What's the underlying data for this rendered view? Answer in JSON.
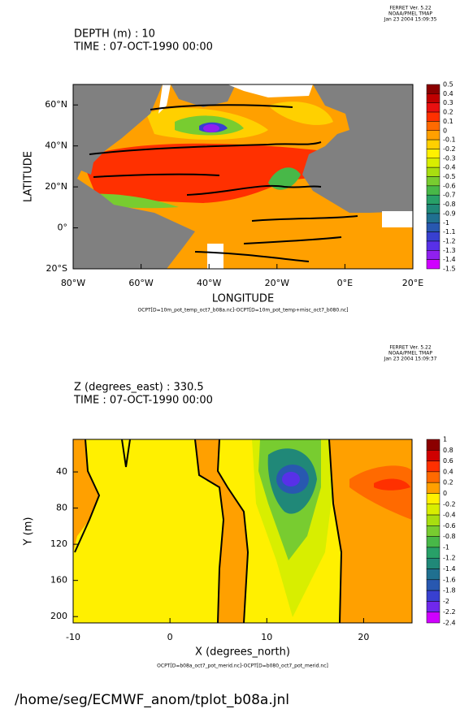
{
  "chart_data": [
    {
      "type": "contour",
      "stamp": [
        "FERRET Ver. 5.22",
        "NOAA/PMEL TMAP",
        "Jan 23 2004 15:09:35"
      ],
      "title_lines": [
        "DEPTH (m) : 10",
        "TIME : 07-OCT-1990 00:00"
      ],
      "xlabel": "LONGITUDE",
      "ylabel": "LATITUDE",
      "note": "OCPT[D=10m_pot_temp_oct7_b08a.nc]-OCPT[D=10m_pot_temp+misc_oct7_b080.nc]",
      "xlim": [
        -80,
        20
      ],
      "xticks": [
        {
          "value": -80,
          "label": "80°W"
        },
        {
          "value": -60,
          "label": "60°W"
        },
        {
          "value": -40,
          "label": "40°W"
        },
        {
          "value": -20,
          "label": "20°W"
        },
        {
          "value": 0,
          "label": "0°E"
        },
        {
          "value": 20,
          "label": "20°E"
        }
      ],
      "ylim": [
        -20,
        70
      ],
      "yticks": [
        {
          "value": -20,
          "label": "20°S"
        },
        {
          "value": 0,
          "label": "0°"
        },
        {
          "value": 20,
          "label": "20°N"
        },
        {
          "value": 40,
          "label": "40°N"
        },
        {
          "value": 60,
          "label": "60°N"
        }
      ],
      "levels": [
        0.5,
        0.4,
        0.3,
        0.2,
        0.1,
        0,
        -0.1,
        -0.2,
        -0.3,
        -0.4,
        -0.5,
        -0.6,
        -0.7,
        -0.8,
        -0.9,
        -1,
        -1.1,
        -1.2,
        -1.3,
        -1.4,
        -1.5
      ],
      "colors": [
        "#8b0000",
        "#c00000",
        "#e81010",
        "#ff3000",
        "#ff6a00",
        "#ffa000",
        "#ffd000",
        "#fff000",
        "#d8ee00",
        "#a8de10",
        "#78cc30",
        "#48b848",
        "#28a068",
        "#208878",
        "#207090",
        "#2858b0",
        "#3840d0",
        "#5830e8",
        "#9020f0",
        "#d000ff"
      ]
    },
    {
      "type": "contour",
      "stamp": [
        "FERRET Ver. 5.22",
        "NOAA/PMEL TMAP",
        "Jan 23 2004 15:09:37"
      ],
      "title_lines": [
        "Z (degrees_east) : 330.5",
        "TIME : 07-OCT-1990 00:00"
      ],
      "xlabel": "X (degrees_north)",
      "ylabel": "Y (m)",
      "note": "OCPT[D=b08a_oct7_pot_merid.nc]-OCPT[D=b080_oct7_pot_merid.nc]",
      "xlim": [
        -10,
        25
      ],
      "xticks": [
        -10,
        0,
        10,
        20
      ],
      "ylim": [
        207,
        4
      ],
      "y_inverted": true,
      "yticks": [
        40,
        80,
        120,
        160,
        200
      ],
      "levels": [
        1,
        0.8,
        0.6,
        0.4,
        0.2,
        0,
        -0.2,
        -0.4,
        -0.6,
        -0.8,
        -1,
        -1.2,
        -1.4,
        -1.6,
        -1.8,
        -2,
        -2.2,
        -2.4
      ],
      "colors": [
        "#8b0000",
        "#d00000",
        "#ff3000",
        "#ff6a00",
        "#ffa000",
        "#fff000",
        "#d8ee00",
        "#a8de10",
        "#78cc30",
        "#48b848",
        "#28a068",
        "#208878",
        "#207090",
        "#2858b0",
        "#3840d0",
        "#7028ec",
        "#d000ff"
      ]
    }
  ],
  "footer": "/home/seg/ECMWF_anom/tplot_b08a.jnl"
}
